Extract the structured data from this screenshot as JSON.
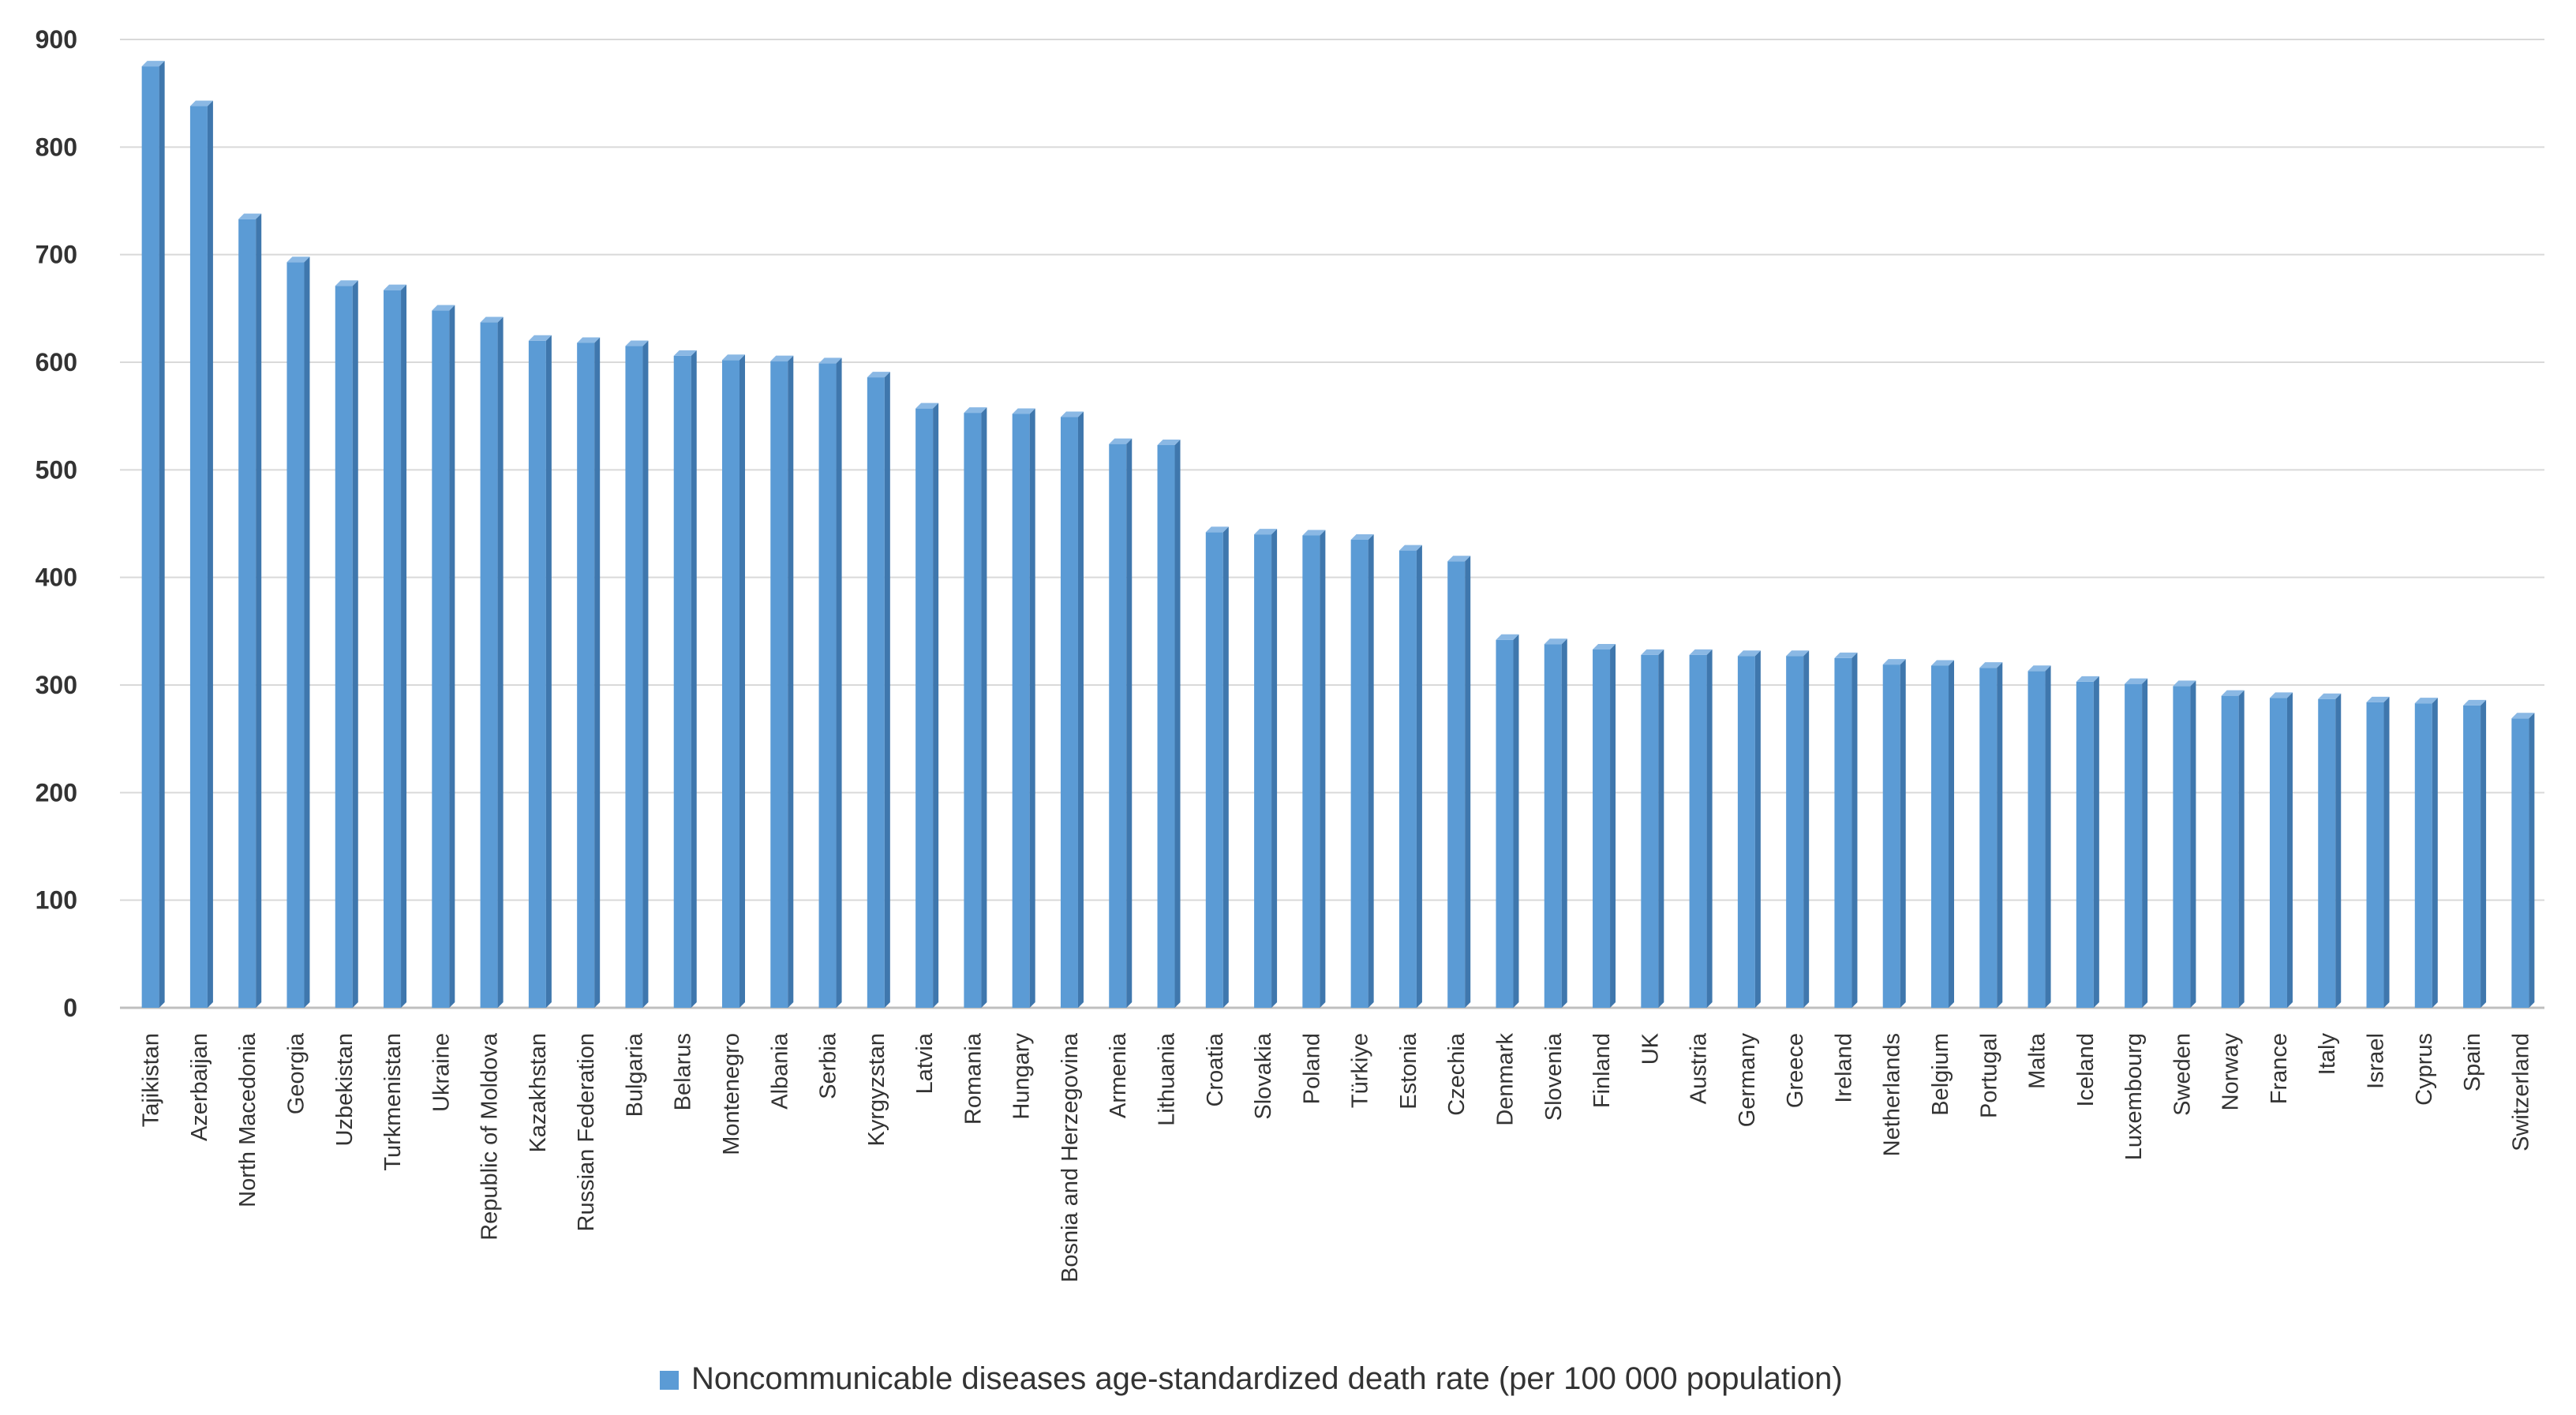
{
  "chart_data": {
    "type": "bar",
    "title": "",
    "xlabel": "",
    "ylabel": "",
    "ylim": [
      0,
      900
    ],
    "y_ticks": [
      0,
      100,
      200,
      300,
      400,
      500,
      600,
      700,
      800,
      900
    ],
    "grid": true,
    "legend_position": "bottom",
    "colors": {
      "bar": "#5b9bd5",
      "bar_side": "#3f77ad",
      "bar_top": "#8ab8e4",
      "grid": "#d9d9d9",
      "axis": "#bfbfbf",
      "text": "#333333"
    },
    "categories": [
      "Tajikistan",
      "Azerbaijan",
      "North Macedonia",
      "Georgia",
      "Uzbekistan",
      "Turkmenistan",
      "Ukraine",
      "Republic of Moldova",
      "Kazakhstan",
      "Russian Federation",
      "Bulgaria",
      "Belarus",
      "Montenegro",
      "Albania",
      "Serbia",
      "Kyrgyzstan",
      "Latvia",
      "Romania",
      "Hungary",
      "Bosnia and Herzegovina",
      "Armenia",
      "Lithuania",
      "Croatia",
      "Slovakia",
      "Poland",
      "Türkiye",
      "Estonia",
      "Czechia",
      "Denmark",
      "Slovenia",
      "Finland",
      "UK",
      "Austria",
      "Germany",
      "Greece",
      "Ireland",
      "Netherlands",
      "Belgium",
      "Portugal",
      "Malta",
      "Iceland",
      "Luxembourg",
      "Sweden",
      "Norway",
      "France",
      "Italy",
      "Israel",
      "Cyprus",
      "Spain",
      "Switzerland"
    ],
    "series": [
      {
        "name": "Noncommunicable diseases age-standardized death rate (per 100 000 population)",
        "values": [
          875,
          838,
          733,
          693,
          671,
          667,
          648,
          637,
          620,
          618,
          615,
          606,
          602,
          601,
          599,
          586,
          557,
          553,
          552,
          549,
          524,
          523,
          442,
          440,
          439,
          435,
          425,
          415,
          342,
          338,
          333,
          328,
          328,
          327,
          327,
          325,
          319,
          318,
          316,
          313,
          303,
          301,
          299,
          290,
          288,
          287,
          284,
          283,
          281,
          269
        ]
      }
    ]
  }
}
